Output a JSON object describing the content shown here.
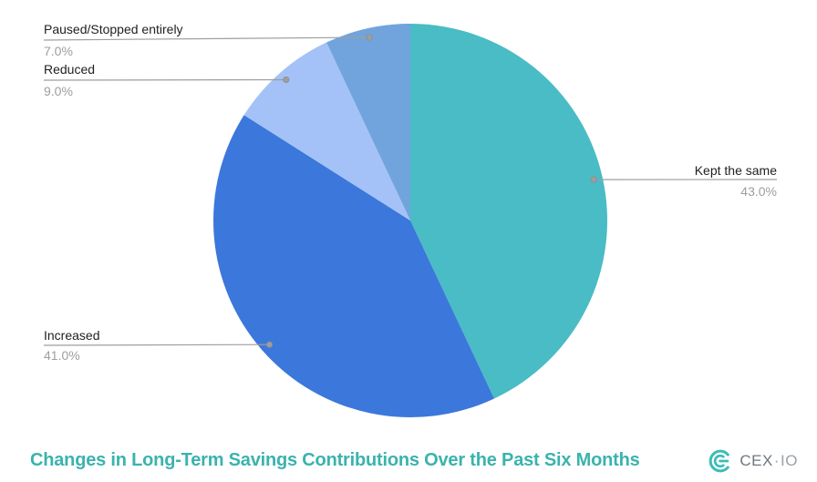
{
  "chart_data": {
    "type": "pie",
    "title": "Changes in Long-Term Savings Contributions Over the Past Six Months",
    "categories": [
      "Kept the same",
      "Increased",
      "Reduced",
      "Paused/Stopped entirely"
    ],
    "values": [
      43.0,
      41.0,
      9.0,
      7.0
    ],
    "value_labels": [
      "43.0%",
      "41.0%",
      "9.0%",
      "7.0%"
    ],
    "colors": [
      "#49BCC5",
      "#3C77DB",
      "#A4C2F7",
      "#71A4DC"
    ],
    "start_angle_deg": 0,
    "direction": "clockwise",
    "legend_position": "none",
    "labels_style": {
      "name_color": "#212121",
      "percent_color": "#9E9E9E",
      "leader_line_color": "#9E9E9E",
      "title_color": "#3AB3AD"
    }
  },
  "brand": {
    "primary": "CEX",
    "separator": "·",
    "secondary": "IO",
    "icon": "cexio-concentric-c-mark",
    "icon_color": "#3BBDB5"
  }
}
